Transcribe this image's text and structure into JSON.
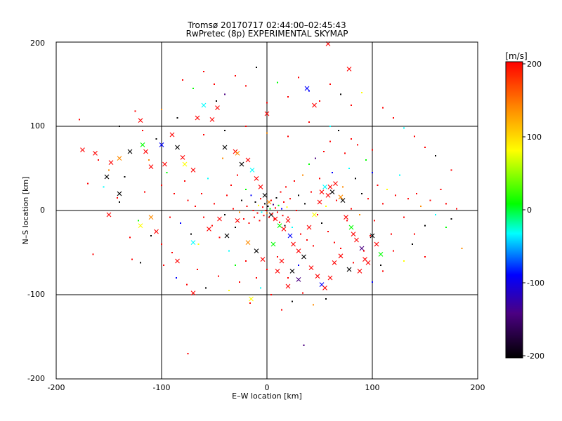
{
  "chart_data": {
    "type": "scatter",
    "title": "Tromsø 20170717 02:44:00–02:45:43",
    "subtitle": "RwPretec (8p) EXPERIMENTAL SKYMAP",
    "xlabel": "E–W location [km]",
    "ylabel": "N–S location [km]",
    "xlim": [
      -200,
      200
    ],
    "ylim": [
      -200,
      200
    ],
    "xticks": [
      "-200",
      "-100",
      "0",
      "100",
      "200"
    ],
    "yticks": [
      "-200",
      "-100",
      "0",
      "100",
      "200"
    ],
    "grid": true,
    "colorbar": {
      "label": "[m/s]",
      "range": [
        -200,
        200
      ],
      "ticks": [
        "200",
        "100",
        "0",
        "-100",
        "-200"
      ],
      "colors": [
        "#ff0000",
        "#ff8c00",
        "#ffff00",
        "#00ff00",
        "#00ffff",
        "#0000ff",
        "#4b0082",
        "#000000"
      ]
    },
    "series": [
      {
        "marker": "x",
        "points": [
          [
            -175,
            72
          ],
          [
            -163,
            68
          ],
          [
            -152,
            40
          ],
          [
            -148,
            57
          ],
          [
            -140,
            62
          ],
          [
            -130,
            70
          ],
          [
            -120,
            107
          ],
          [
            -118,
            78
          ],
          [
            -115,
            70
          ],
          [
            -110,
            52
          ],
          [
            -100,
            78
          ],
          [
            -97,
            55
          ],
          [
            -90,
            90
          ],
          [
            -85,
            75
          ],
          [
            -80,
            63
          ],
          [
            -78,
            55
          ],
          [
            -70,
            48
          ],
          [
            -66,
            110
          ],
          [
            -60,
            125
          ],
          [
            -52,
            108
          ],
          [
            -47,
            122
          ],
          [
            -40,
            75
          ],
          [
            -30,
            70
          ],
          [
            -28,
            68
          ],
          [
            -24,
            55
          ],
          [
            -18,
            60
          ],
          [
            -14,
            48
          ],
          [
            -10,
            38
          ],
          [
            -6,
            28
          ],
          [
            -2,
            18
          ],
          [
            0,
            115
          ],
          [
            2,
            10
          ],
          [
            4,
            -5
          ],
          [
            8,
            -10
          ],
          [
            12,
            -18
          ],
          [
            16,
            -22
          ],
          [
            20,
            -12
          ],
          [
            22,
            -30
          ],
          [
            25,
            -40
          ],
          [
            30,
            -48
          ],
          [
            35,
            -55
          ],
          [
            40,
            -20
          ],
          [
            45,
            -5
          ],
          [
            50,
            10
          ],
          [
            52,
            22
          ],
          [
            55,
            28
          ],
          [
            58,
            18
          ],
          [
            60,
            28
          ],
          [
            62,
            22
          ],
          [
            65,
            32
          ],
          [
            70,
            16
          ],
          [
            72,
            12
          ],
          [
            75,
            -8
          ],
          [
            80,
            -20
          ],
          [
            82,
            -28
          ],
          [
            85,
            -35
          ],
          [
            90,
            -45
          ],
          [
            93,
            -58
          ],
          [
            96,
            -62
          ],
          [
            100,
            -30
          ],
          [
            104,
            -40
          ],
          [
            108,
            -52
          ],
          [
            42,
            -68
          ],
          [
            48,
            -78
          ],
          [
            52,
            -88
          ],
          [
            55,
            -92
          ],
          [
            20,
            -90
          ],
          [
            24,
            -72
          ],
          [
            60,
            -80
          ],
          [
            -120,
            -18
          ],
          [
            -105,
            -25
          ],
          [
            -85,
            -60
          ],
          [
            -70,
            -38
          ],
          [
            -55,
            -22
          ],
          [
            -45,
            -10
          ],
          [
            -38,
            -30
          ],
          [
            -28,
            -12
          ],
          [
            -18,
            -38
          ],
          [
            -10,
            -48
          ],
          [
            -4,
            -58
          ],
          [
            6,
            -40
          ],
          [
            10,
            -72
          ],
          [
            14,
            -60
          ],
          [
            30,
            -82
          ],
          [
            64,
            -62
          ],
          [
            70,
            -54
          ],
          [
            78,
            -70
          ],
          [
            88,
            -72
          ],
          [
            -15,
            -105
          ],
          [
            -70,
            -98
          ],
          [
            45,
            125
          ],
          [
            38,
            145
          ],
          [
            58,
            198
          ],
          [
            78,
            168
          ],
          [
            -140,
            20
          ],
          [
            -150,
            -5
          ],
          [
            -110,
            -8
          ]
        ]
      },
      {
        "marker": "dot",
        "points": [
          [
            -178,
            108
          ],
          [
            -170,
            32
          ],
          [
            -155,
            28
          ],
          [
            -142,
            15
          ],
          [
            -130,
            -32
          ],
          [
            -120,
            -62
          ],
          [
            -118,
            95
          ],
          [
            -112,
            60
          ],
          [
            -105,
            85
          ],
          [
            -100,
            30
          ],
          [
            -95,
            45
          ],
          [
            -92,
            -8
          ],
          [
            -88,
            20
          ],
          [
            -82,
            -15
          ],
          [
            -78,
            35
          ],
          [
            -75,
            12
          ],
          [
            -72,
            -28
          ],
          [
            -68,
            5
          ],
          [
            -65,
            -40
          ],
          [
            -62,
            20
          ],
          [
            -60,
            -8
          ],
          [
            -56,
            38
          ],
          [
            -52,
            -18
          ],
          [
            -50,
            8
          ],
          [
            -48,
            130
          ],
          [
            -45,
            -32
          ],
          [
            -42,
            62
          ],
          [
            -40,
            -5
          ],
          [
            -38,
            18
          ],
          [
            -36,
            -48
          ],
          [
            -34,
            30
          ],
          [
            -32,
            2
          ],
          [
            -30,
            -20
          ],
          [
            -28,
            42
          ],
          [
            -26,
            -2
          ],
          [
            -24,
            12
          ],
          [
            -22,
            -10
          ],
          [
            -20,
            25
          ],
          [
            -19,
            5
          ],
          [
            -17,
            -15
          ],
          [
            -15,
            18
          ],
          [
            -13,
            0
          ],
          [
            -12,
            -8
          ],
          [
            -11,
            10
          ],
          [
            -9,
            -3
          ],
          [
            -8,
            6
          ],
          [
            -7,
            -12
          ],
          [
            -6,
            14
          ],
          [
            -5,
            -2
          ],
          [
            -4,
            4
          ],
          [
            -3,
            -6
          ],
          [
            -2,
            8
          ],
          [
            -1,
            0
          ],
          [
            0,
            -3
          ],
          [
            1,
            5
          ],
          [
            2,
            -8
          ],
          [
            3,
            2
          ],
          [
            4,
            12
          ],
          [
            5,
            -4
          ],
          [
            6,
            7
          ],
          [
            7,
            -10
          ],
          [
            8,
            3
          ],
          [
            9,
            15
          ],
          [
            10,
            -2
          ],
          [
            11,
            6
          ],
          [
            12,
            -14
          ],
          [
            13,
            22
          ],
          [
            14,
            2
          ],
          [
            15,
            -6
          ],
          [
            16,
            10
          ],
          [
            17,
            -18
          ],
          [
            18,
            28
          ],
          [
            19,
            4
          ],
          [
            20,
            -8
          ],
          [
            22,
            14
          ],
          [
            24,
            -20
          ],
          [
            26,
            35
          ],
          [
            28,
            0
          ],
          [
            30,
            18
          ],
          [
            32,
            -28
          ],
          [
            34,
            42
          ],
          [
            36,
            8
          ],
          [
            38,
            -35
          ],
          [
            40,
            55
          ],
          [
            42,
            22
          ],
          [
            44,
            -42
          ],
          [
            46,
            62
          ],
          [
            48,
            -5
          ],
          [
            50,
            38
          ],
          [
            52,
            -15
          ],
          [
            54,
            70
          ],
          [
            56,
            5
          ],
          [
            58,
            -25
          ],
          [
            60,
            82
          ],
          [
            62,
            45
          ],
          [
            64,
            -38
          ],
          [
            66,
            12
          ],
          [
            68,
            95
          ],
          [
            70,
            -45
          ],
          [
            72,
            28
          ],
          [
            74,
            68
          ],
          [
            76,
            -12
          ],
          [
            78,
            50
          ],
          [
            80,
            2
          ],
          [
            82,
            -62
          ],
          [
            84,
            38
          ],
          [
            86,
            78
          ],
          [
            88,
            -5
          ],
          [
            90,
            20
          ],
          [
            92,
            -48
          ],
          [
            94,
            60
          ],
          [
            96,
            14
          ],
          [
            98,
            -30
          ],
          [
            100,
            45
          ],
          [
            102,
            -12
          ],
          [
            105,
            30
          ],
          [
            108,
            -65
          ],
          [
            110,
            8
          ],
          [
            114,
            25
          ],
          [
            118,
            -28
          ],
          [
            122,
            18
          ],
          [
            126,
            42
          ],
          [
            130,
            -8
          ],
          [
            134,
            14
          ],
          [
            138,
            -40
          ],
          [
            142,
            20
          ],
          [
            146,
            5
          ],
          [
            150,
            -18
          ],
          [
            155,
            12
          ],
          [
            160,
            -5
          ],
          [
            165,
            25
          ],
          [
            170,
            8
          ],
          [
            175,
            -10
          ],
          [
            180,
            2
          ],
          [
            185,
            -45
          ],
          [
            -135,
            40
          ],
          [
            -128,
            -58
          ],
          [
            -122,
            -12
          ],
          [
            -116,
            22
          ],
          [
            -98,
            -65
          ],
          [
            -86,
            -80
          ],
          [
            -76,
            -88
          ],
          [
            -66,
            -70
          ],
          [
            -58,
            -92
          ],
          [
            -46,
            -78
          ],
          [
            -36,
            -95
          ],
          [
            -26,
            -85
          ],
          [
            -16,
            -110
          ],
          [
            -6,
            -92
          ],
          [
            4,
            -100
          ],
          [
            14,
            -118
          ],
          [
            24,
            -108
          ],
          [
            34,
            -98
          ],
          [
            44,
            -112
          ],
          [
            56,
            -105
          ],
          [
            -80,
            155
          ],
          [
            -70,
            145
          ],
          [
            -60,
            165
          ],
          [
            -50,
            150
          ],
          [
            -40,
            138
          ],
          [
            -30,
            160
          ],
          [
            -20,
            148
          ],
          [
            -10,
            170
          ],
          [
            0,
            128
          ],
          [
            10,
            152
          ],
          [
            20,
            135
          ],
          [
            30,
            158
          ],
          [
            40,
            142
          ],
          [
            50,
            130
          ],
          [
            60,
            150
          ],
          [
            70,
            138
          ],
          [
            80,
            125
          ],
          [
            90,
            140
          ],
          [
            110,
            122
          ],
          [
            120,
            110
          ],
          [
            130,
            98
          ],
          [
            140,
            88
          ],
          [
            150,
            75
          ],
          [
            160,
            65
          ],
          [
            -160,
            60
          ],
          [
            -150,
            48
          ],
          [
            -140,
            10
          ],
          [
            -165,
            -52
          ],
          [
            170,
            -20
          ],
          [
            175,
            48
          ],
          [
            -75,
            -170
          ],
          [
            35,
            -160
          ],
          [
            -100,
            -40
          ],
          [
            -90,
            -50
          ],
          [
            -110,
            -30
          ],
          [
            120,
            -48
          ],
          [
            130,
            -60
          ],
          [
            140,
            -28
          ],
          [
            150,
            -55
          ],
          [
            100,
            -85
          ],
          [
            110,
            -72
          ],
          [
            -60,
            90
          ],
          [
            -40,
            95
          ],
          [
            -20,
            100
          ],
          [
            0,
            92
          ],
          [
            20,
            88
          ],
          [
            40,
            105
          ],
          [
            60,
            100
          ],
          [
            80,
            85
          ],
          [
            100,
            72
          ],
          [
            -140,
            100
          ],
          [
            -125,
            118
          ],
          [
            -100,
            120
          ],
          [
            -85,
            110
          ],
          [
            -20,
            -60
          ],
          [
            -30,
            -65
          ],
          [
            10,
            -55
          ],
          [
            0,
            -70
          ],
          [
            30,
            -65
          ],
          [
            -10,
            -80
          ],
          [
            20,
            -80
          ]
        ]
      }
    ]
  }
}
